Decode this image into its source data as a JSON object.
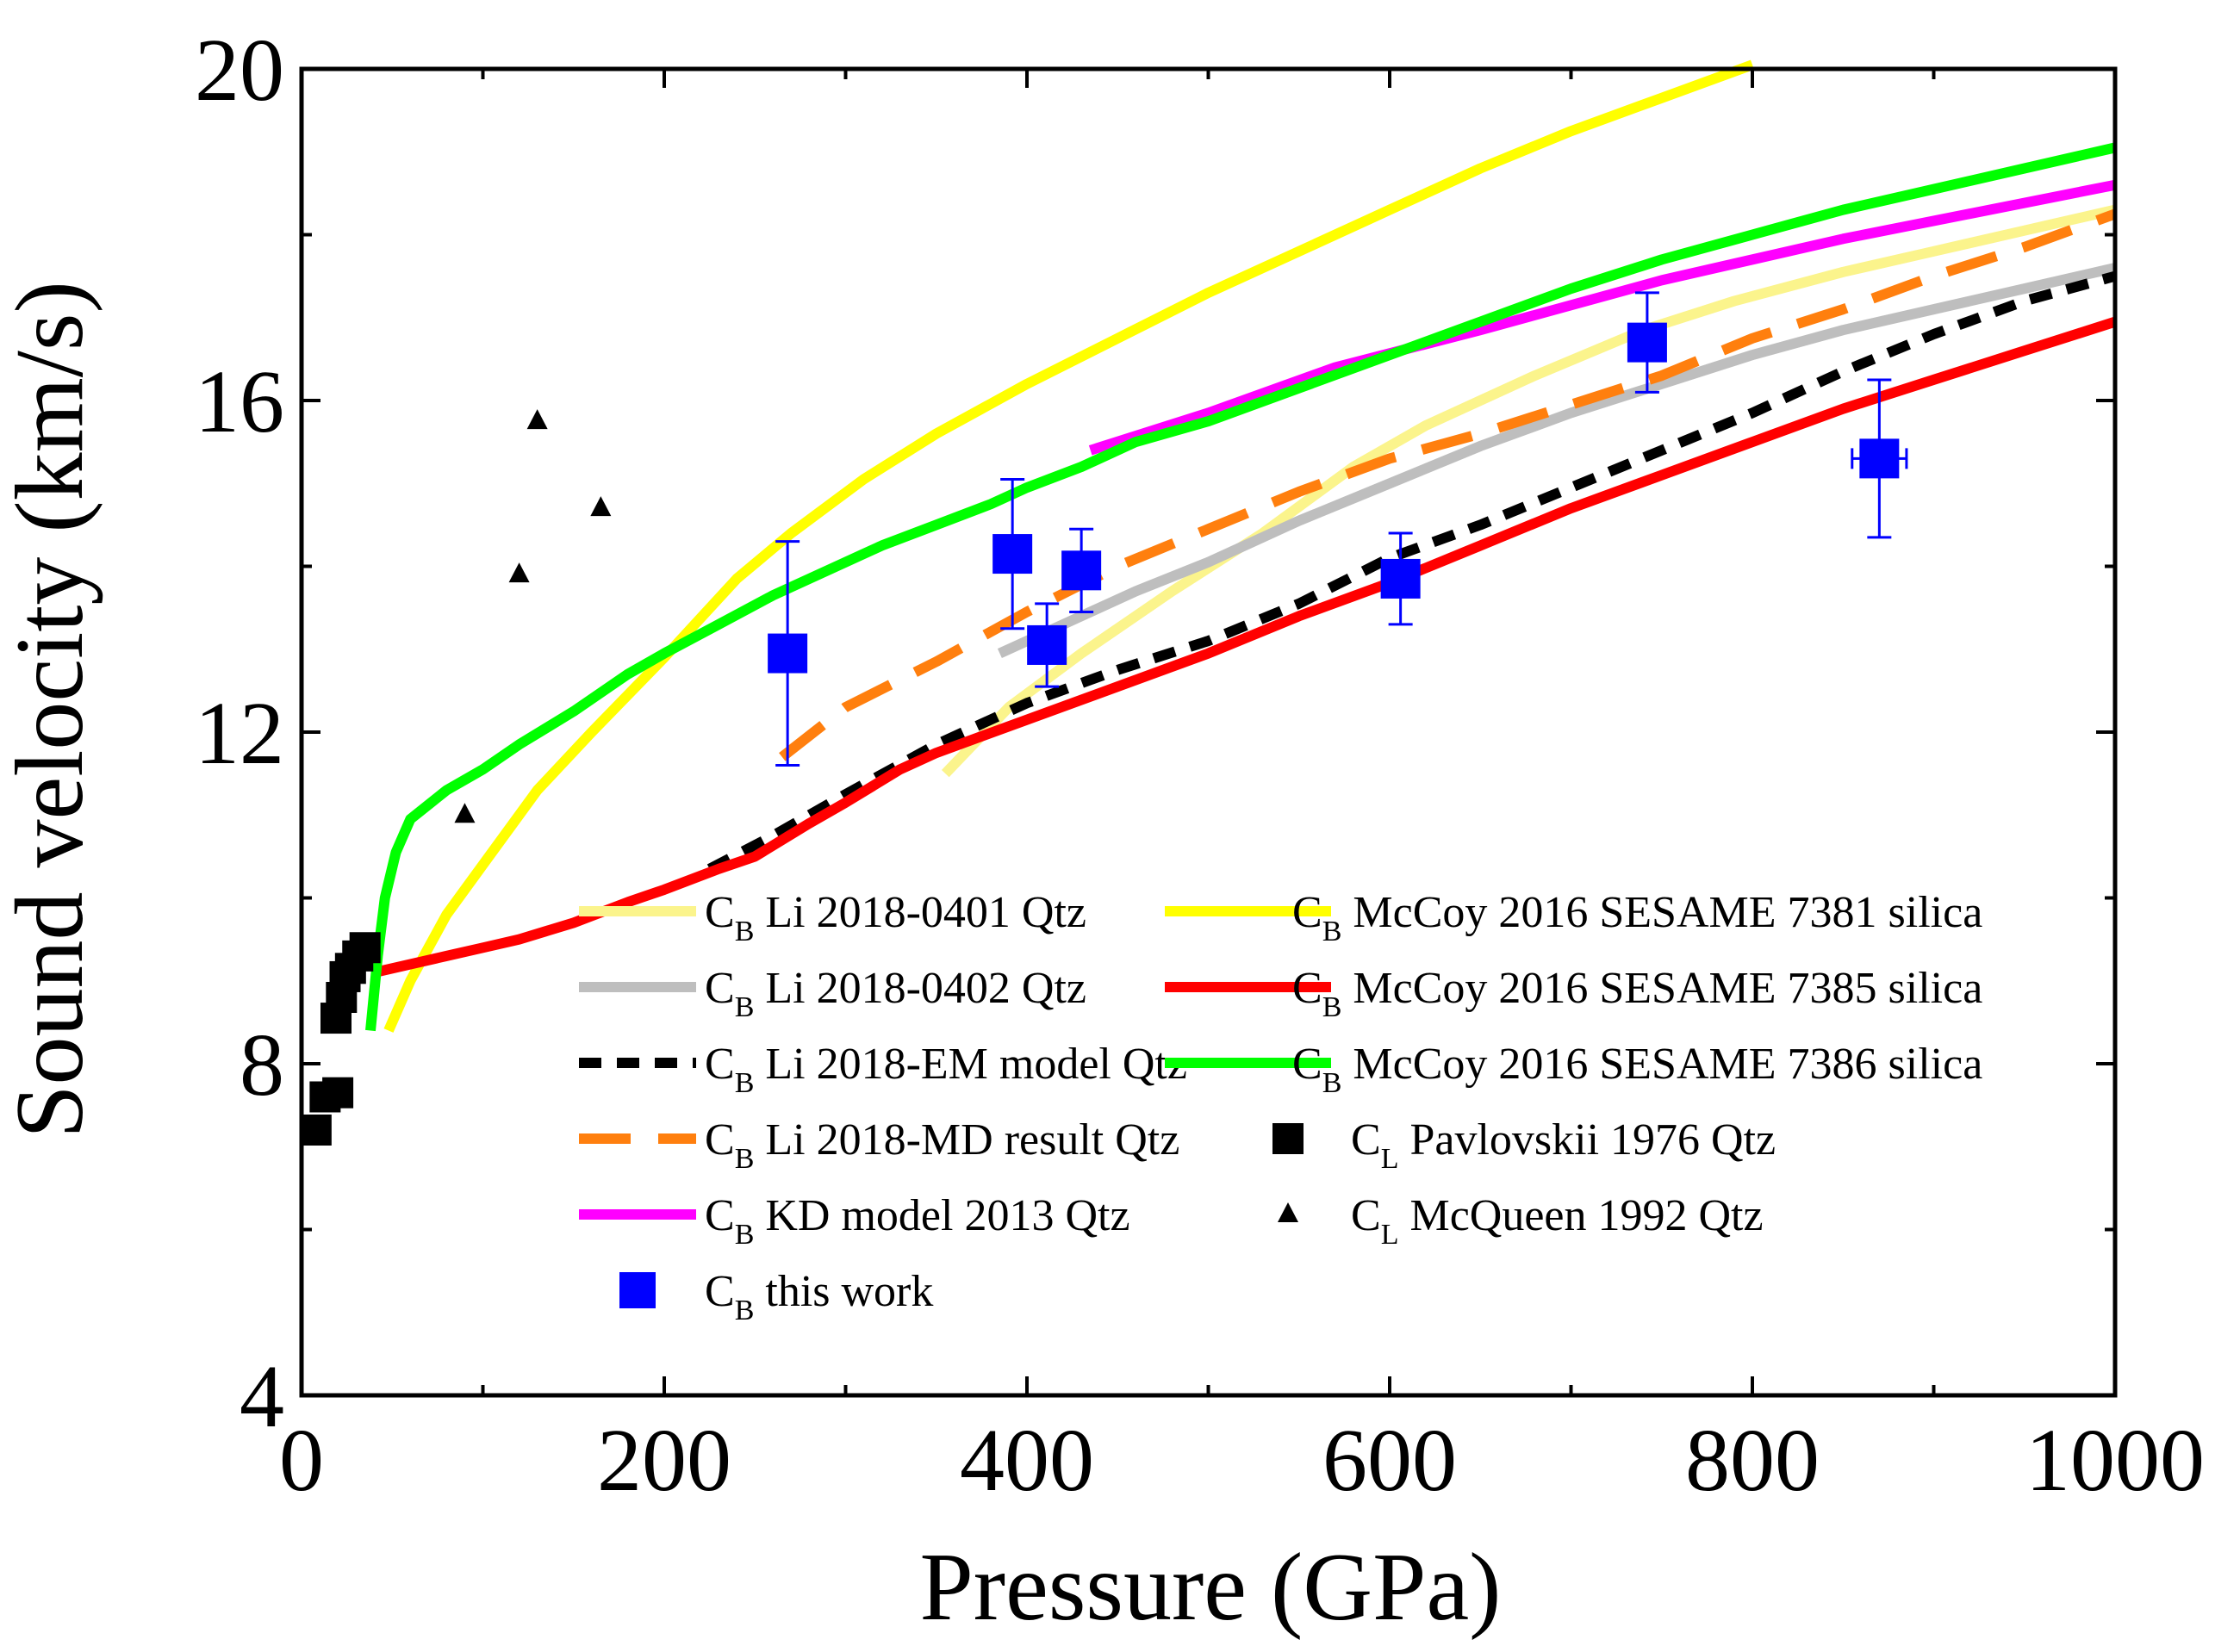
{
  "chart_data": {
    "type": "line",
    "title": "",
    "xlabel": "Pressure (GPa)",
    "ylabel": "Sound velocity (km/s)",
    "xlim": [
      0,
      1000
    ],
    "ylim": [
      4,
      20
    ],
    "xticks": [
      0,
      200,
      400,
      600,
      800,
      1000
    ],
    "yticks": [
      4,
      8,
      12,
      16,
      20
    ],
    "xtick_labels": [
      "0",
      "200",
      "400",
      "600",
      "800",
      "1000"
    ],
    "ytick_labels": [
      "4",
      "8",
      "12",
      "16",
      "20"
    ],
    "grid": false,
    "legend_position": "bottom-center",
    "series": [
      {
        "name_prefix": "C",
        "name_sub": "B",
        "name_rest": " Li 2018-0401 Qtz",
        "kind": "line",
        "color": "#fbf48c",
        "dash": "solid",
        "x": [
          355,
          390,
          430,
          480,
          530,
          580,
          620,
          680,
          740,
          790,
          850,
          900,
          950,
          1000
        ],
        "y": [
          11.5,
          12.3,
          12.95,
          13.7,
          14.4,
          15.2,
          15.7,
          16.3,
          16.85,
          17.2,
          17.55,
          17.8,
          18.05,
          18.3
        ]
      },
      {
        "name_prefix": "C",
        "name_sub": "B",
        "name_rest": " Li 2018-0402 Qtz",
        "kind": "line",
        "color": "#bebebe",
        "dash": "solid",
        "x": [
          385,
          420,
          460,
          500,
          550,
          600,
          650,
          700,
          750,
          800,
          850,
          900,
          950,
          1000
        ],
        "y": [
          12.95,
          13.3,
          13.7,
          14.05,
          14.55,
          15.0,
          15.45,
          15.85,
          16.2,
          16.55,
          16.85,
          17.1,
          17.35,
          17.6
        ]
      },
      {
        "name_prefix": "C",
        "name_sub": "B",
        "name_rest": " Li 2018-EM model Qtz",
        "kind": "line",
        "color": "#000000",
        "dash": "dash",
        "x": [
          225,
          260,
          300,
          350,
          400,
          450,
          500,
          550,
          600,
          650,
          700,
          750,
          800,
          850,
          900,
          950,
          1000
        ],
        "y": [
          10.35,
          10.75,
          11.25,
          11.85,
          12.35,
          12.75,
          13.1,
          13.55,
          14.1,
          14.5,
          14.95,
          15.4,
          15.85,
          16.35,
          16.8,
          17.2,
          17.5
        ]
      },
      {
        "name_prefix": "C",
        "name_sub": "B",
        "name_rest": " Li 2018-MD result Qtz",
        "kind": "line",
        "color": "#ff7f0e",
        "dash": "longdash",
        "x": [
          265,
          300,
          350,
          400,
          450,
          500,
          550,
          600,
          650,
          700,
          750,
          800,
          850,
          900,
          950,
          1000
        ],
        "y": [
          11.7,
          12.3,
          12.85,
          13.45,
          14.0,
          14.45,
          14.9,
          15.3,
          15.6,
          15.95,
          16.3,
          16.75,
          17.1,
          17.5,
          17.85,
          18.25
        ]
      },
      {
        "name_prefix": "C",
        "name_sub": "B",
        "name_rest": " KD model 2013 Qtz",
        "kind": "line",
        "color": "#ff00ff",
        "dash": "solid",
        "x": [
          435,
          500,
          570,
          650,
          750,
          850,
          1000
        ],
        "y": [
          15.4,
          15.85,
          16.4,
          16.85,
          17.45,
          17.95,
          18.6
        ]
      },
      {
        "name_prefix": "C",
        "name_sub": "B",
        "name_rest": " this work",
        "kind": "errorbar",
        "color": "#0000ff",
        "x": [
          268,
          392,
          411,
          430,
          606,
          742,
          870
        ],
        "y": [
          12.95,
          14.15,
          13.05,
          13.95,
          13.85,
          16.7,
          15.3
        ],
        "yerr": [
          1.35,
          0.9,
          0.5,
          0.5,
          0.55,
          0.6,
          0.95
        ],
        "xerr": [
          0,
          8,
          0,
          0,
          0,
          0,
          15
        ]
      },
      {
        "name_prefix": "C",
        "name_sub": "B",
        "name_rest": " McCoy 2016 SESAME 7381 silica",
        "kind": "line",
        "color": "#ffff00",
        "dash": "solid",
        "x": [
          48,
          60,
          80,
          100,
          130,
          160,
          200,
          240,
          270,
          310,
          350,
          400,
          450,
          500,
          550,
          600,
          650,
          700,
          750,
          800
        ],
        "y": [
          8.4,
          9.0,
          9.8,
          10.4,
          11.3,
          12.0,
          12.9,
          13.85,
          14.4,
          15.05,
          15.6,
          16.2,
          16.75,
          17.3,
          17.8,
          18.3,
          18.8,
          19.25,
          19.65,
          20.05
        ]
      },
      {
        "name_prefix": "C",
        "name_sub": "B",
        "name_rest": " McCoy 2016 SESAME 7385 silica",
        "kind": "line",
        "color": "#ff0000",
        "dash": "solid",
        "x": [
          40,
          60,
          80,
          100,
          120,
          150,
          180,
          200,
          230,
          250,
          280,
          300,
          330,
          350,
          400,
          450,
          500,
          550,
          600,
          650,
          700,
          750,
          800,
          850,
          900,
          950,
          1000
        ],
        "y": [
          9.1,
          9.2,
          9.3,
          9.4,
          9.5,
          9.7,
          9.95,
          10.1,
          10.35,
          10.5,
          10.9,
          11.15,
          11.55,
          11.75,
          12.15,
          12.55,
          12.95,
          13.4,
          13.8,
          14.25,
          14.7,
          15.1,
          15.5,
          15.9,
          16.25,
          16.6,
          16.95
        ]
      },
      {
        "name_prefix": "C",
        "name_sub": "B",
        "name_rest": " McCoy 2016 SESAME 7386 silica",
        "kind": "line",
        "color": "#00ff00",
        "dash": "solid",
        "x": [
          38,
          42,
          46,
          52,
          60,
          80,
          100,
          120,
          150,
          180,
          200,
          230,
          260,
          290,
          320,
          350,
          380,
          400,
          430,
          460,
          500,
          550,
          600,
          650,
          700,
          750,
          800,
          850,
          900,
          950,
          1000
        ],
        "y": [
          8.4,
          9.3,
          10.0,
          10.55,
          10.95,
          11.3,
          11.55,
          11.85,
          12.25,
          12.7,
          12.95,
          13.3,
          13.65,
          13.95,
          14.25,
          14.5,
          14.75,
          14.95,
          15.2,
          15.5,
          15.75,
          16.15,
          16.55,
          16.95,
          17.35,
          17.7,
          18.0,
          18.3,
          18.55,
          18.8,
          19.05
        ]
      },
      {
        "name_prefix": "C",
        "name_sub": "L",
        "name_rest": " Pavlovskii 1976 Qtz",
        "kind": "scatter",
        "marker": "square",
        "color": "#000000",
        "x": [
          8,
          13,
          20,
          19,
          22,
          24,
          27,
          31,
          35
        ],
        "y": [
          7.2,
          7.6,
          7.65,
          8.55,
          8.8,
          9.05,
          9.15,
          9.3,
          9.4
        ]
      },
      {
        "name_prefix": "C",
        "name_sub": "L",
        "name_rest": " McQueen 1992 Qtz",
        "kind": "scatter",
        "marker": "triangle",
        "color": "#000000",
        "x": [
          90,
          120,
          130,
          165
        ],
        "y": [
          11.0,
          13.9,
          15.75,
          14.7
        ]
      }
    ]
  }
}
